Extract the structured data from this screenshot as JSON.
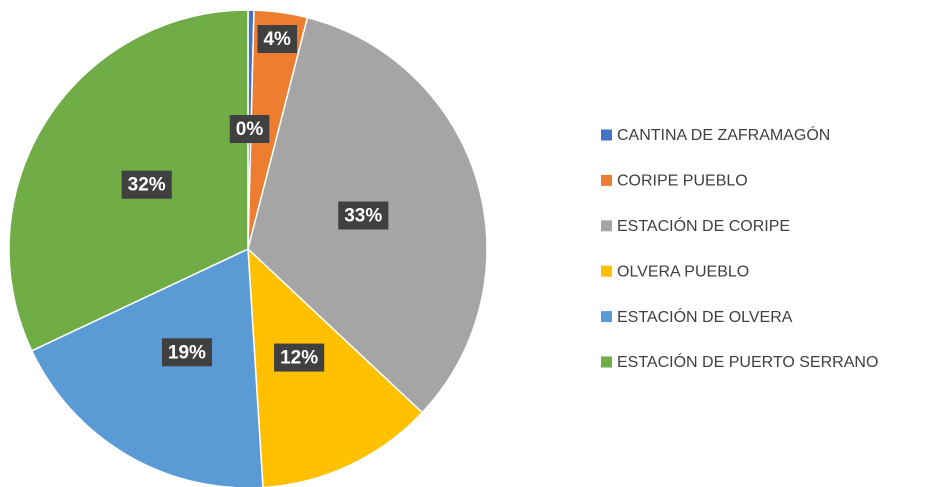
{
  "chart_data": {
    "type": "pie",
    "categories": [
      "CANTINA DE ZAFRAMAGÓN",
      "CORIPE PUEBLO",
      "ESTACIÓN DE CORIPE",
      "OLVERA PUEBLO",
      "ESTACIÓN DE OLVERA",
      "ESTACIÓN DE PUERTO SERRANO"
    ],
    "values": [
      0.4,
      3.6,
      33,
      12,
      19,
      32
    ],
    "value_labels": [
      "0%",
      "4%",
      "33%",
      "12%",
      "19%",
      "32%"
    ],
    "colors": [
      "#4472c4",
      "#ed7d31",
      "#a5a5a5",
      "#ffc000",
      "#5b9bd5",
      "#70ad47"
    ],
    "legend": "right"
  }
}
